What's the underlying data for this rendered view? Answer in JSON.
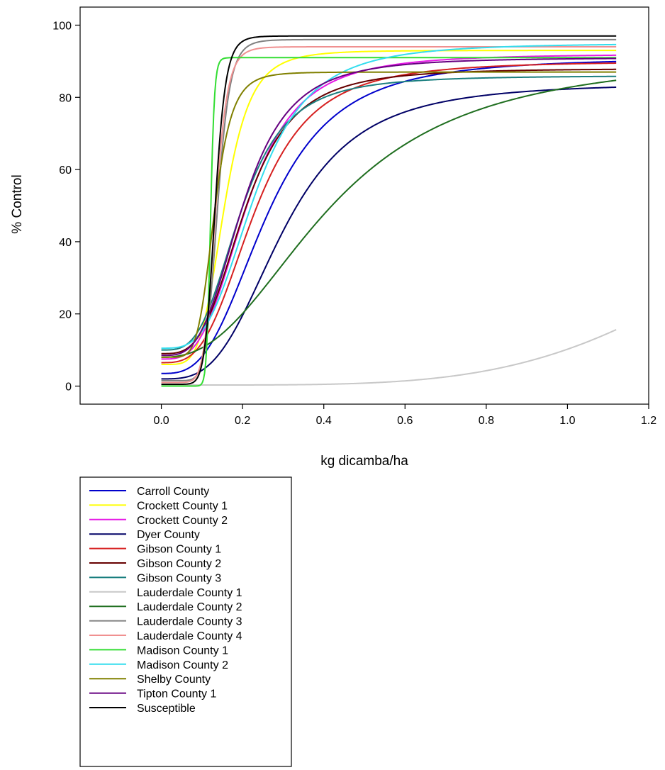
{
  "chart_data": {
    "type": "line",
    "title": "",
    "xlabel": "kg dicamba/ha",
    "ylabel": "% Control",
    "xlim": [
      -0.2,
      1.2
    ],
    "ylim": [
      -5,
      105
    ],
    "x_ticks": [
      "0.0",
      "0.2",
      "0.4",
      "0.6",
      "0.8",
      "1.0",
      "1.2"
    ],
    "x_tick_values": [
      0,
      0.2,
      0.4,
      0.6,
      0.8,
      1.0,
      1.2
    ],
    "y_ticks": [
      "0",
      "20",
      "40",
      "60",
      "80",
      "100"
    ],
    "y_tick_values": [
      0,
      20,
      40,
      60,
      80,
      100
    ],
    "x_range": [
      0,
      1.12
    ],
    "grid": false,
    "legend_position": "below-left",
    "series": [
      {
        "name": "Carroll County",
        "color": "#0000cc",
        "y0": 3.5,
        "ymax": 91.0,
        "ed50": 0.26,
        "slope": 3.0
      },
      {
        "name": "Crockett County 1",
        "color": "#ffff00",
        "y0": 6.0,
        "ymax": 93.0,
        "ed50": 0.155,
        "slope": 4.8
      },
      {
        "name": "Crockett County 2",
        "color": "#e619e6",
        "y0": 7.5,
        "ymax": 92.0,
        "ed50": 0.21,
        "slope": 3.3
      },
      {
        "name": "Dyer County",
        "color": "#000066",
        "y0": 2.0,
        "ymax": 84.0,
        "ed50": 0.3,
        "slope": 3.2
      },
      {
        "name": "Gibson County 1",
        "color": "#d62020",
        "y0": 6.5,
        "ymax": 90.0,
        "ed50": 0.23,
        "slope": 3.2
      },
      {
        "name": "Gibson County 2",
        "color": "#660000",
        "y0": 9.0,
        "ymax": 88.0,
        "ed50": 0.205,
        "slope": 3.4
      },
      {
        "name": "Gibson County 3",
        "color": "#1a7f7f",
        "y0": 10.0,
        "ymax": 86.0,
        "ed50": 0.195,
        "slope": 3.4
      },
      {
        "name": "Lauderdale County 1",
        "color": "#c8c8c8",
        "y0": 0.3,
        "ymax": 100.0,
        "ed50": 1.65,
        "slope": 4.4
      },
      {
        "name": "Lauderdale County 2",
        "color": "#1f6e1f",
        "y0": 8.0,
        "ymax": 92.0,
        "ed50": 0.42,
        "slope": 2.4
      },
      {
        "name": "Lauderdale County 3",
        "color": "#808080",
        "y0": 1.5,
        "ymax": 96.0,
        "ed50": 0.138,
        "slope": 9.0
      },
      {
        "name": "Lauderdale County 4",
        "color": "#f09090",
        "y0": 1.0,
        "ymax": 94.0,
        "ed50": 0.133,
        "slope": 9.0
      },
      {
        "name": "Madison County 1",
        "color": "#33dd33",
        "y0": 0.0,
        "ymax": 91.0,
        "ed50": 0.121,
        "slope": 25.0
      },
      {
        "name": "Madison County 2",
        "color": "#33ddee",
        "y0": 10.5,
        "ymax": 95.0,
        "ed50": 0.23,
        "slope": 3.4
      },
      {
        "name": "Shelby County",
        "color": "#808000",
        "y0": 8.0,
        "ymax": 87.0,
        "ed50": 0.13,
        "slope": 6.0
      },
      {
        "name": "Tipton County 1",
        "color": "#660080",
        "y0": 8.5,
        "ymax": 91.0,
        "ed50": 0.2,
        "slope": 3.4
      },
      {
        "name": "Susceptible",
        "color": "#000000",
        "y0": 0.5,
        "ymax": 97.0,
        "ed50": 0.132,
        "slope": 10.0
      }
    ]
  }
}
